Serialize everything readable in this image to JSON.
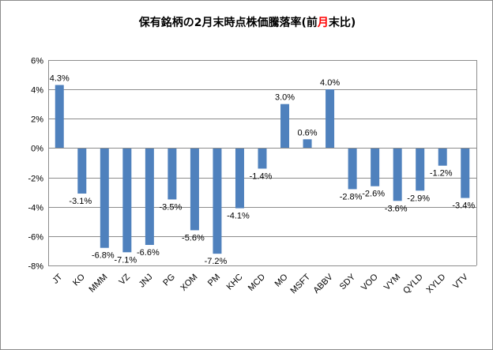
{
  "chart_data": {
    "type": "bar",
    "title_parts": [
      "保有銘柄の2月末時点株価騰落率(前",
      "月",
      "末比)"
    ],
    "title_accent_color": "#ff0000",
    "bar_color": "#4f81bd",
    "categories": [
      "JT",
      "KO",
      "MMM",
      "VZ",
      "JNJ",
      "PG",
      "XOM",
      "PM",
      "KHC",
      "MCD",
      "MO",
      "MSFT",
      "ABBV",
      "SDY",
      "VOO",
      "VYM",
      "QYLD",
      "XYLD",
      "VTV"
    ],
    "values": [
      4.3,
      -3.1,
      -6.8,
      -7.1,
      -6.6,
      -3.5,
      -5.6,
      -7.2,
      -4.1,
      -1.4,
      3.0,
      0.6,
      4.0,
      -2.8,
      -2.6,
      -3.6,
      -2.9,
      -1.2,
      -3.4
    ],
    "value_labels": [
      "4.3%",
      "-3.1%",
      "-6.8%",
      "-7.1%",
      "-6.6%",
      "-3.5%",
      "-5.6%",
      "-7.2%",
      "-4.1%",
      "-1.4%",
      "3.0%",
      "0.6%",
      "4.0%",
      "-2.8%",
      "-2.6%",
      "-3.6%",
      "-2.9%",
      "-1.2%",
      "-3.4%"
    ],
    "ylim": [
      -8,
      6
    ],
    "yticks": [
      6,
      4,
      2,
      0,
      -2,
      -4,
      -6,
      -8
    ],
    "ytick_labels": [
      "6%",
      "4%",
      "2%",
      "0%",
      "-2%",
      "-4%",
      "-6%",
      "-8%"
    ],
    "grid": true,
    "legend": "none",
    "xlabel": "",
    "ylabel": ""
  }
}
